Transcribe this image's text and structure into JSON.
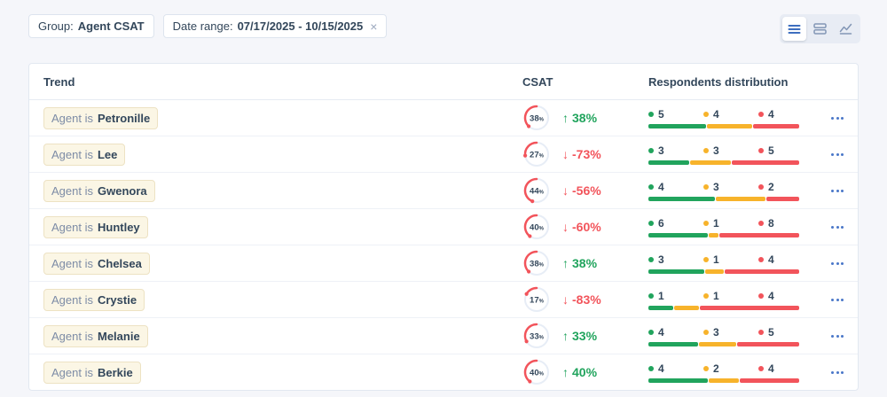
{
  "filters": {
    "group": {
      "label": "Group:",
      "value": "Agent CSAT"
    },
    "date_range": {
      "label": "Date range:",
      "value": "07/17/2025 - 10/15/2025",
      "close_icon": "×"
    }
  },
  "view_toggle": {
    "options": [
      {
        "name": "list-view",
        "icon": "list-icon",
        "active": true
      },
      {
        "name": "card-view",
        "icon": "cards-icon",
        "active": false
      },
      {
        "name": "chart-view",
        "icon": "line-chart-icon",
        "active": false
      }
    ]
  },
  "table": {
    "columns": [
      "Trend",
      "CSAT",
      "Respondents distribution"
    ],
    "rows": [
      {
        "label_prefix": "Agent is",
        "name": "Petronille",
        "csat_pct": 38,
        "trend_arrow": "↑",
        "trend_change": "38%",
        "trend_direction": "up",
        "distribution": [
          5,
          4,
          4
        ]
      },
      {
        "label_prefix": "Agent is",
        "name": "Lee",
        "csat_pct": 27,
        "trend_arrow": "↓",
        "trend_change": "-73%",
        "trend_direction": "down",
        "distribution": [
          3,
          3,
          5
        ]
      },
      {
        "label_prefix": "Agent is",
        "name": "Gwenora",
        "csat_pct": 44,
        "trend_arrow": "↓",
        "trend_change": "-56%",
        "trend_direction": "down",
        "distribution": [
          4,
          3,
          2
        ]
      },
      {
        "label_prefix": "Agent is",
        "name": "Huntley",
        "csat_pct": 40,
        "trend_arrow": "↓",
        "trend_change": "-60%",
        "trend_direction": "down",
        "distribution": [
          6,
          1,
          8
        ]
      },
      {
        "label_prefix": "Agent is",
        "name": "Chelsea",
        "csat_pct": 38,
        "trend_arrow": "↑",
        "trend_change": "38%",
        "trend_direction": "up",
        "distribution": [
          3,
          1,
          4
        ]
      },
      {
        "label_prefix": "Agent is",
        "name": "Crystie",
        "csat_pct": 17,
        "trend_arrow": "↓",
        "trend_change": "-83%",
        "trend_direction": "down",
        "distribution": [
          1,
          1,
          4
        ]
      },
      {
        "label_prefix": "Agent is",
        "name": "Melanie",
        "csat_pct": 33,
        "trend_arrow": "↑",
        "trend_change": "33%",
        "trend_direction": "up",
        "distribution": [
          4,
          3,
          5
        ]
      },
      {
        "label_prefix": "Agent is",
        "name": "Berkie",
        "csat_pct": 40,
        "trend_arrow": "↑",
        "trend_change": "40%",
        "trend_direction": "up",
        "distribution": [
          4,
          2,
          4
        ]
      }
    ],
    "row_menu_icon": "kebab-menu"
  },
  "colors": {
    "green": "#21a45d",
    "yellow": "#f7b32b",
    "red": "#f2545b",
    "navy": "#33475b",
    "accent_blue": "#3d6ebf",
    "inactive_icon": "#8296b5",
    "gauge_track": "#e7edf6"
  }
}
